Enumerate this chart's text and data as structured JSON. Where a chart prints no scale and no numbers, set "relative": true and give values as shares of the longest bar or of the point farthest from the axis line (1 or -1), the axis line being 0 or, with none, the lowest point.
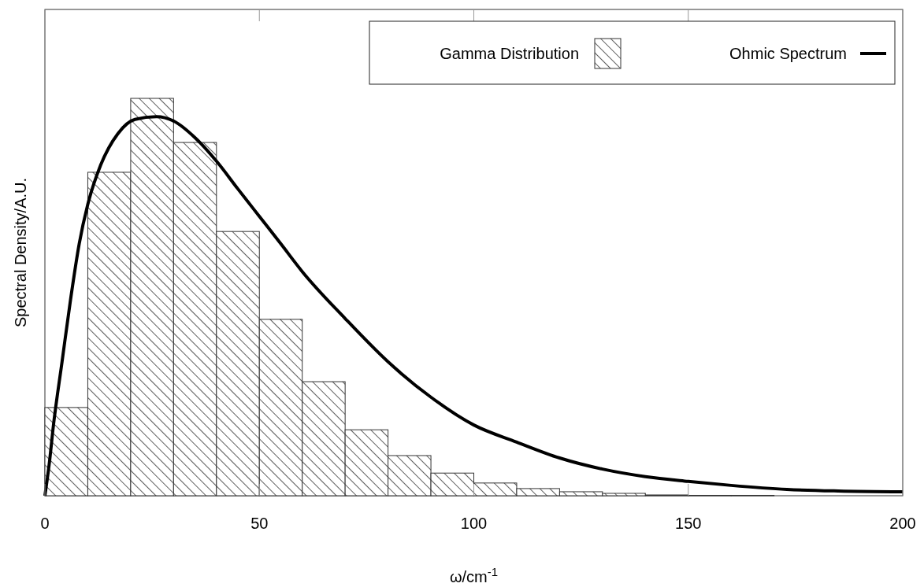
{
  "chart_data": {
    "type": "histogram",
    "relative": true,
    "xlabel": "ω/cm$^{-1}$",
    "ylabel": "Spectral Density/A.U.",
    "xlim": [
      0,
      200
    ],
    "xticks": [
      0,
      50,
      100,
      150,
      200
    ],
    "bins": [
      0,
      10,
      20,
      30,
      40,
      50,
      60,
      70,
      80,
      90,
      100,
      110,
      120,
      130,
      140,
      150,
      160,
      170
    ],
    "legend": "top right",
    "grid": false,
    "series": [
      {
        "name": "Gamma Distribution",
        "color": "#333333",
        "values": [
          0.222,
          0.814,
          1,
          0.889,
          0.665,
          0.444,
          0.287,
          0.166,
          0.101,
          0.057,
          0.032,
          0.018,
          0.01,
          0.006,
          0.002,
          0.001,
          0.001
        ]
      },
      {
        "name": "Ohmic Spectrum",
        "type": "line",
        "color": "#000000",
        "x": [
          0,
          1,
          2,
          4,
          6,
          8,
          10,
          13,
          17,
          21,
          26,
          30,
          35,
          40,
          45,
          50,
          55,
          60,
          70,
          80,
          90,
          100,
          110,
          120,
          130,
          140,
          150,
          160,
          173,
          185,
          200
        ],
        "values": [
          0,
          0.079,
          0.178,
          0.337,
          0.495,
          0.634,
          0.733,
          0.832,
          0.911,
          0.947,
          0.954,
          0.943,
          0.901,
          0.842,
          0.772,
          0.703,
          0.634,
          0.564,
          0.446,
          0.337,
          0.248,
          0.178,
          0.135,
          0.095,
          0.067,
          0.048,
          0.036,
          0.026,
          0.016,
          0.012,
          0.01
        ]
      }
    ]
  }
}
